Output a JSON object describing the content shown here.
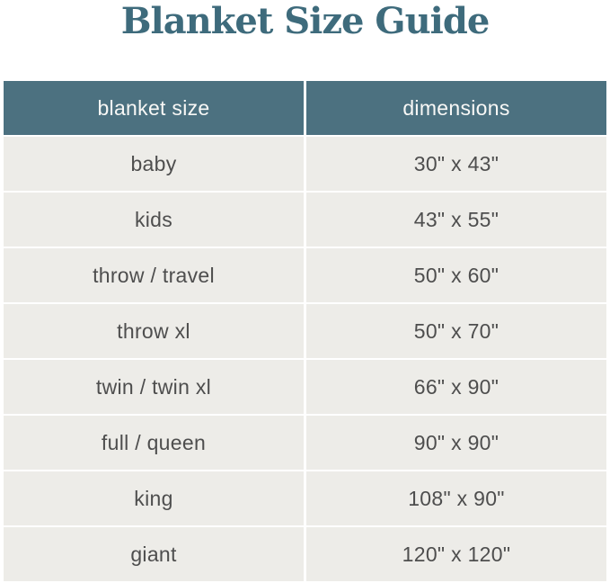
{
  "title": "Blanket Size Guide",
  "colors": {
    "title_color": "#3e6b7c",
    "header_bg": "#4c7180",
    "header_text": "#f8f8f6",
    "row_bg": "#edece8",
    "row_text": "#4e4e4e",
    "page_bg": "#ffffff"
  },
  "chart_data": {
    "type": "table",
    "title": "Blanket Size Guide",
    "columns": [
      "blanket size",
      "dimensions"
    ],
    "rows": [
      [
        "baby",
        "30\" x 43\""
      ],
      [
        "kids",
        "43\" x 55\""
      ],
      [
        "throw / travel",
        "50\" x 60\""
      ],
      [
        "throw xl",
        "50\" x 70\""
      ],
      [
        "twin / twin xl",
        "66\" x 90\""
      ],
      [
        "full / queen",
        "90\" x 90\""
      ],
      [
        "king",
        "108\" x 90\""
      ],
      [
        "giant",
        "120\" x 120\""
      ]
    ]
  }
}
